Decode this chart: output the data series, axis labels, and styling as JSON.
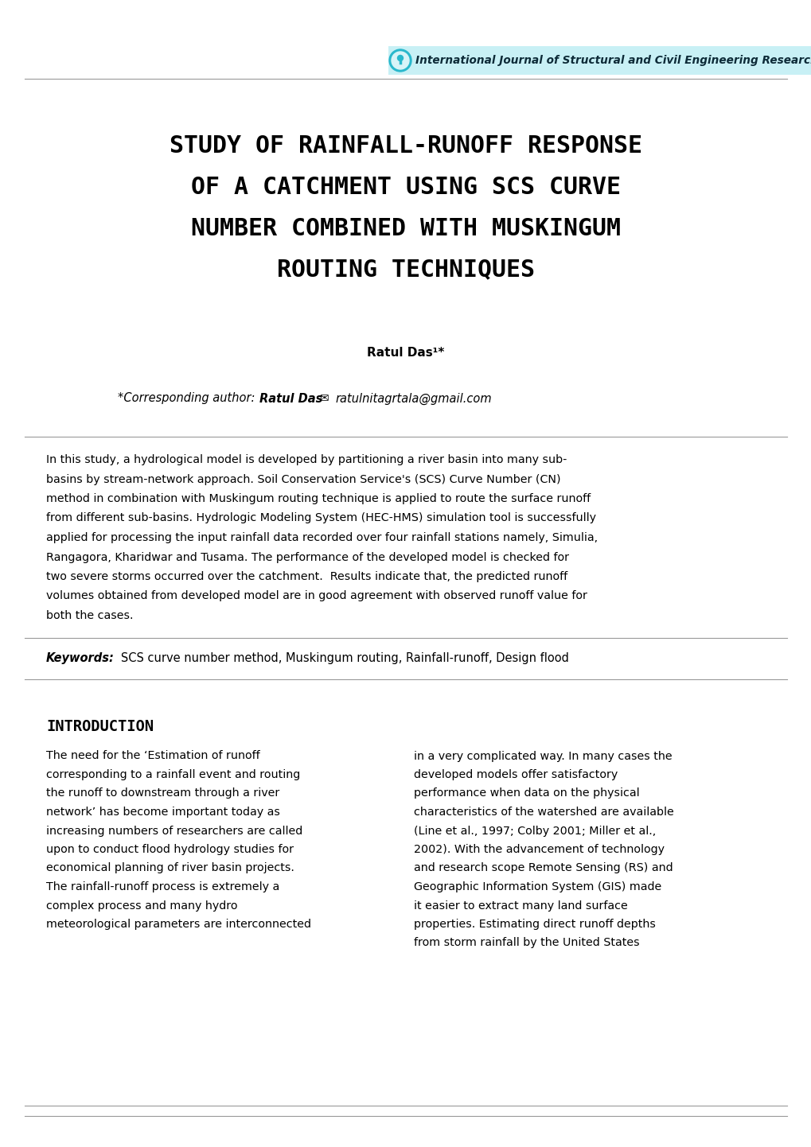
{
  "page_bg": "#ffffff",
  "header_bg_color": "#c8f0f5",
  "header_text": "International Journal of Structural and Civil Engineering Research",
  "separator_color": "#999999",
  "title_lines": [
    "STUDY OF RAINFALL-RUNOFF RESPONSE",
    "OF A CATCHMENT USING SCS CURVE",
    "NUMBER COMBINED WITH MUSKINGUM",
    "ROUTING TECHNIQUES"
  ],
  "author": "Ratul Das¹*",
  "corr_prefix": "*Corresponding author:",
  "corr_bold": "Ratul Das",
  "corr_email": "ratulnitagrtala@gmail.com",
  "abstract_lines": [
    "In this study, a hydrological model is developed by partitioning a river basin into many sub-",
    "basins by stream-network approach. Soil Conservation Service's (SCS) Curve Number (CN)",
    "method in combination with Muskingum routing technique is applied to route the surface runoff",
    "from different sub-basins. Hydrologic Modeling System (HEC-HMS) simulation tool is successfully",
    "applied for processing the input rainfall data recorded over four rainfall stations namely, Simulia,",
    "Rangagora, Kharidwar and Tusama. The performance of the developed model is checked for",
    "two severe storms occurred over the catchment.  Results indicate that, the predicted runoff",
    "volumes obtained from developed model are in good agreement with observed runoff value for",
    "both the cases."
  ],
  "kw_label": "Keywords:",
  "kw_text": "   SCS curve number method, Muskingum routing, Rainfall-runoff, Design flood",
  "intro_heading": "INTRODUCTION",
  "intro_col1_lines": [
    "The need for the ‘Estimation of runoff",
    "corresponding to a rainfall event and routing",
    "the runoff to downstream through a river",
    "network’ has become important today as",
    "increasing numbers of researchers are called",
    "upon to conduct flood hydrology studies for",
    "economical planning of river basin projects.",
    "The rainfall-runoff process is extremely a",
    "complex process and many hydro",
    "meteorological parameters are interconnected"
  ],
  "intro_col2_lines": [
    "in a very complicated way. In many cases the",
    "developed models offer satisfactory",
    "performance when data on the physical",
    "characteristics of the watershed are available",
    "(Line et al., 1997; Colby 2001; Miller et al.,",
    "2002). With the advancement of technology",
    "and research scope Remote Sensing (RS) and",
    "Geographic Information System (GIS) made",
    "it easier to extract many land surface",
    "properties. Estimating direct runoff depths",
    "from storm rainfall by the United States"
  ]
}
